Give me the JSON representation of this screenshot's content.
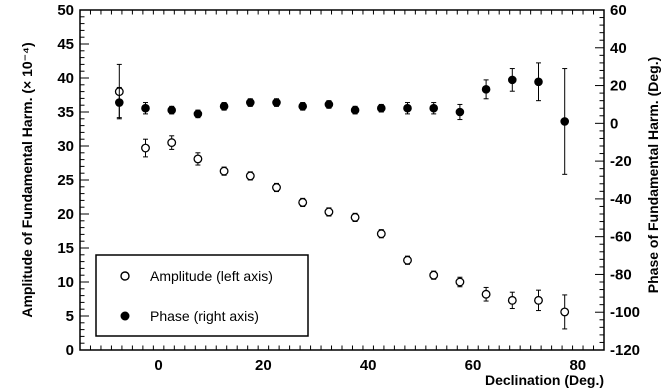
{
  "chart_data": {
    "type": "scatter",
    "title": "",
    "xlabel": "Declination (Deg.)",
    "ylabel_left": "Amplitude of Fundamental Harm. (× 10⁻⁴)",
    "ylabel_right": "Phase of Fundamental Harm. (Deg.)",
    "xlim": [
      -15,
      85
    ],
    "ylim_left": [
      0,
      50
    ],
    "ylim_right": [
      -120,
      60
    ],
    "x_ticks": [
      0,
      20,
      40,
      60,
      80
    ],
    "x_tick_labels": [
      "0",
      "20",
      "40",
      "60",
      "80"
    ],
    "y_left_ticks": [
      0,
      5,
      10,
      15,
      20,
      25,
      30,
      35,
      40,
      45,
      50
    ],
    "y_left_tick_labels": [
      "0",
      "5",
      "10",
      "15",
      "20",
      "25",
      "30",
      "35",
      "40",
      "45",
      "50"
    ],
    "y_right_ticks": [
      -120,
      -100,
      -80,
      -60,
      -40,
      -20,
      0,
      20,
      40,
      60
    ],
    "y_right_tick_labels": [
      "-120",
      "-100",
      "-80",
      "-60",
      "-40",
      "-20",
      "0",
      "20",
      "40",
      "60"
    ],
    "grid": false,
    "legend_position": "bottom-left",
    "series": [
      {
        "name": "Amplitude (left axis)",
        "axis": "left",
        "marker": "open-circle",
        "x": [
          -7.5,
          -2.5,
          2.5,
          7.5,
          12.5,
          17.5,
          22.5,
          27.5,
          32.5,
          37.5,
          42.5,
          47.5,
          52.5,
          57.5,
          62.5,
          67.5,
          72.5,
          77.5
        ],
        "y": [
          38.0,
          29.7,
          30.5,
          28.1,
          26.3,
          25.6,
          23.9,
          21.7,
          20.3,
          19.5,
          17.1,
          13.2,
          11.0,
          10.0,
          8.2,
          7.3,
          7.3,
          5.6
        ],
        "error": [
          4.0,
          1.3,
          1.0,
          0.9,
          0.6,
          0.6,
          0.6,
          0.6,
          0.6,
          0.6,
          0.6,
          0.6,
          0.6,
          0.7,
          1.0,
          1.2,
          1.5,
          2.5
        ]
      },
      {
        "name": "Phase (right axis)",
        "axis": "right",
        "marker": "filled-circle",
        "x": [
          -7.5,
          -2.5,
          2.5,
          7.5,
          12.5,
          17.5,
          22.5,
          27.5,
          32.5,
          37.5,
          42.5,
          47.5,
          52.5,
          57.5,
          62.5,
          67.5,
          72.5,
          77.5
        ],
        "y": [
          11,
          8,
          7,
          5,
          9,
          11,
          11,
          9,
          10,
          7,
          8,
          8,
          8,
          6,
          18,
          23,
          22,
          1
        ],
        "error": [
          8,
          3,
          2,
          2,
          2,
          2,
          2,
          2,
          2,
          2,
          2,
          3,
          3,
          4,
          5,
          6,
          10,
          28
        ]
      }
    ]
  }
}
